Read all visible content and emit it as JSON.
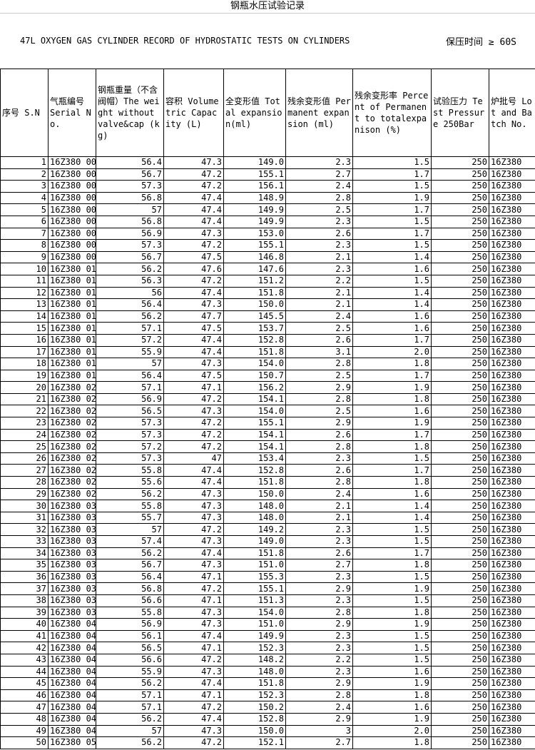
{
  "title": "钢瓶水压试验记录",
  "subtitle": "47L OXYGEN GAS CYLINDER RECORD OF HYDROSTATIC TESTS ON CYLINDERS",
  "hold_time": "保压时间 ≥ 60S",
  "headers": [
    "序号 S.N",
    "气瓶编号 Serial No.",
    "钢瓶重量（不含阀帽）The weight without valve&cap (kg)",
    "容积 Volumetric Capacity (L)",
    "全变形值 Total expansion(ml)",
    "残余变形值 Permanent expansion (ml)",
    "残余变形率 Percent of Permanent to totalexpanison (%)",
    "试验压力 Test Pressure 250Bar",
    "炉批号 Lot and Batch No."
  ],
  "rows": [
    [
      "1",
      "16Z380 00",
      "56.4",
      "47.3",
      "149.0",
      "2.3",
      "1.5",
      "250",
      "16Z380"
    ],
    [
      "2",
      "16Z380 00",
      "56.7",
      "47.2",
      "155.1",
      "2.7",
      "1.7",
      "250",
      "16Z380"
    ],
    [
      "3",
      "16Z380 00",
      "57.3",
      "47.2",
      "156.1",
      "2.4",
      "1.5",
      "250",
      "16Z380"
    ],
    [
      "4",
      "16Z380 00",
      "56.8",
      "47.4",
      "148.9",
      "2.8",
      "1.9",
      "250",
      "16Z380"
    ],
    [
      "5",
      "16Z380 00",
      "57",
      "47.4",
      "149.9",
      "2.5",
      "1.7",
      "250",
      "16Z380"
    ],
    [
      "6",
      "16Z380 00",
      "56.8",
      "47.4",
      "149.9",
      "2.3",
      "1.5",
      "250",
      "16Z380"
    ],
    [
      "7",
      "16Z380 00",
      "56.9",
      "47.3",
      "153.0",
      "2.6",
      "1.7",
      "250",
      "16Z380"
    ],
    [
      "8",
      "16Z380 00",
      "57.3",
      "47.2",
      "155.1",
      "2.3",
      "1.5",
      "250",
      "16Z380"
    ],
    [
      "9",
      "16Z380 00",
      "56.7",
      "47.5",
      "146.8",
      "2.1",
      "1.4",
      "250",
      "16Z380"
    ],
    [
      "10",
      "16Z380 01",
      "56.2",
      "47.6",
      "147.6",
      "2.3",
      "1.6",
      "250",
      "16Z380"
    ],
    [
      "11",
      "16Z380 01",
      "56.3",
      "47.2",
      "151.2",
      "2.2",
      "1.5",
      "250",
      "16Z380"
    ],
    [
      "12",
      "16Z380 01",
      "56",
      "47.4",
      "151.8",
      "2.1",
      "1.4",
      "250",
      "16Z380"
    ],
    [
      "13",
      "16Z380 01",
      "56.4",
      "47.3",
      "150.0",
      "2.1",
      "1.4",
      "250",
      "16Z380"
    ],
    [
      "14",
      "16Z380 01",
      "56.2",
      "47.7",
      "145.5",
      "2.4",
      "1.6",
      "250",
      "16Z380"
    ],
    [
      "15",
      "16Z380 01",
      "57.1",
      "47.5",
      "153.7",
      "2.5",
      "1.6",
      "250",
      "16Z380"
    ],
    [
      "16",
      "16Z380 01",
      "57.2",
      "47.4",
      "152.8",
      "2.6",
      "1.7",
      "250",
      "16Z380"
    ],
    [
      "17",
      "16Z380 01",
      "55.9",
      "47.4",
      "151.8",
      "3.1",
      "2.0",
      "250",
      "16Z380"
    ],
    [
      "18",
      "16Z380 01",
      "57",
      "47.3",
      "154.0",
      "2.8",
      "1.8",
      "250",
      "16Z380"
    ],
    [
      "19",
      "16Z380 01",
      "56.4",
      "47.5",
      "150.7",
      "2.5",
      "1.7",
      "250",
      "16Z380"
    ],
    [
      "20",
      "16Z380 02",
      "57.1",
      "47.1",
      "156.2",
      "2.9",
      "1.9",
      "250",
      "16Z380"
    ],
    [
      "21",
      "16Z380 02",
      "56.9",
      "47.2",
      "154.1",
      "2.8",
      "1.8",
      "250",
      "16Z380"
    ],
    [
      "22",
      "16Z380 02",
      "56.5",
      "47.3",
      "154.0",
      "2.5",
      "1.6",
      "250",
      "16Z380"
    ],
    [
      "23",
      "16Z380 02",
      "57.3",
      "47.2",
      "155.1",
      "2.9",
      "1.9",
      "250",
      "16Z380"
    ],
    [
      "24",
      "16Z380 02",
      "57.3",
      "47.2",
      "154.1",
      "2.6",
      "1.7",
      "250",
      "16Z380"
    ],
    [
      "25",
      "16Z380 02",
      "57.2",
      "47.2",
      "154.1",
      "2.8",
      "1.8",
      "250",
      "16Z380"
    ],
    [
      "26",
      "16Z380 02",
      "57.3",
      "47",
      "153.4",
      "2.3",
      "1.5",
      "250",
      "16Z380"
    ],
    [
      "27",
      "16Z380 02",
      "55.8",
      "47.4",
      "152.8",
      "2.6",
      "1.7",
      "250",
      "16Z380"
    ],
    [
      "28",
      "16Z380 02",
      "55.6",
      "47.4",
      "151.8",
      "2.8",
      "1.8",
      "250",
      "16Z380"
    ],
    [
      "29",
      "16Z380 02",
      "56.2",
      "47.3",
      "150.0",
      "2.4",
      "1.6",
      "250",
      "16Z380"
    ],
    [
      "30",
      "16Z380 03",
      "55.8",
      "47.3",
      "148.0",
      "2.1",
      "1.4",
      "250",
      "16Z380"
    ],
    [
      "31",
      "16Z380 03",
      "55.7",
      "47.3",
      "148.0",
      "2.1",
      "1.4",
      "250",
      "16Z380"
    ],
    [
      "32",
      "16Z380 03",
      "57",
      "47.2",
      "149.2",
      "2.3",
      "1.5",
      "250",
      "16Z380"
    ],
    [
      "33",
      "16Z380 03",
      "57.4",
      "47.3",
      "149.0",
      "2.3",
      "1.5",
      "250",
      "16Z380"
    ],
    [
      "34",
      "16Z380 03",
      "56.2",
      "47.4",
      "151.8",
      "2.6",
      "1.7",
      "250",
      "16Z380"
    ],
    [
      "35",
      "16Z380 03",
      "56.7",
      "47.3",
      "151.0",
      "2.7",
      "1.8",
      "250",
      "16Z380"
    ],
    [
      "36",
      "16Z380 03",
      "56.4",
      "47.1",
      "155.3",
      "2.3",
      "1.5",
      "250",
      "16Z380"
    ],
    [
      "37",
      "16Z380 03",
      "56.8",
      "47.2",
      "155.1",
      "2.9",
      "1.9",
      "250",
      "16Z380"
    ],
    [
      "38",
      "16Z380 03",
      "56.6",
      "47.1",
      "151.3",
      "2.3",
      "1.5",
      "250",
      "16Z380"
    ],
    [
      "39",
      "16Z380 03",
      "55.8",
      "47.3",
      "154.0",
      "2.8",
      "1.8",
      "250",
      "16Z380"
    ],
    [
      "40",
      "16Z380 04",
      "56.9",
      "47.3",
      "151.0",
      "2.9",
      "1.9",
      "250",
      "16Z380"
    ],
    [
      "41",
      "16Z380 04",
      "56.1",
      "47.4",
      "149.9",
      "2.3",
      "1.5",
      "250",
      "16Z380"
    ],
    [
      "42",
      "16Z380 04",
      "56.5",
      "47.1",
      "152.3",
      "2.3",
      "1.5",
      "250",
      "16Z380"
    ],
    [
      "43",
      "16Z380 04",
      "56.6",
      "47.2",
      "148.2",
      "2.2",
      "1.5",
      "250",
      "16Z380"
    ],
    [
      "44",
      "16Z380 04",
      "55.9",
      "47.3",
      "148.0",
      "2.3",
      "1.6",
      "250",
      "16Z380"
    ],
    [
      "45",
      "16Z380 04",
      "56.2",
      "47.4",
      "151.8",
      "2.9",
      "1.9",
      "250",
      "16Z380"
    ],
    [
      "46",
      "16Z380 04",
      "57.1",
      "47.1",
      "152.3",
      "2.8",
      "1.8",
      "250",
      "16Z380"
    ],
    [
      "47",
      "16Z380 04",
      "57.1",
      "47.2",
      "150.2",
      "2.4",
      "1.6",
      "250",
      "16Z380"
    ],
    [
      "48",
      "16Z380 04",
      "56.2",
      "47.4",
      "152.8",
      "2.9",
      "1.9",
      "250",
      "16Z380"
    ],
    [
      "49",
      "16Z380 04",
      "57",
      "47.3",
      "150.0",
      "3",
      "2.0",
      "250",
      "16Z380"
    ],
    [
      "50",
      "16Z380 05",
      "56.2",
      "47.2",
      "152.1",
      "2.7",
      "1.8",
      "250",
      "16Z380"
    ]
  ]
}
